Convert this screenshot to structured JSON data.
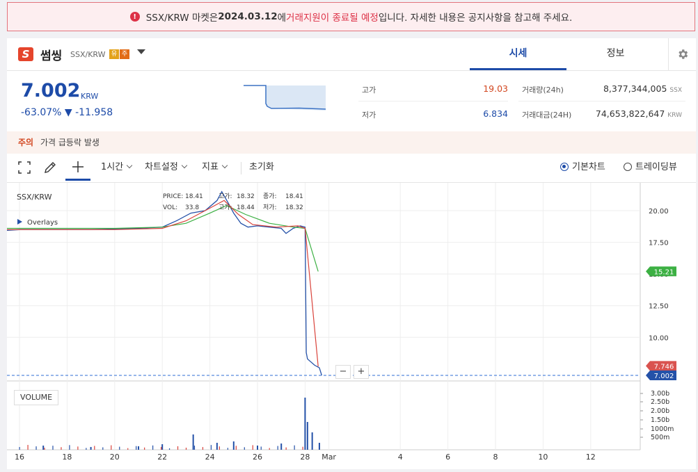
{
  "notice": {
    "pre": "SSX/KRW 마켓은 ",
    "date": "2024.03.12",
    "mid": "에 ",
    "highlight": "거래지원이 종료될 예정",
    "post": "입니다. 자세한 내용은 공지사항을 참고해 주세요."
  },
  "coin": {
    "logo": "S",
    "name": "썸씽",
    "pair": "SSX/KRW",
    "badge1": "유",
    "badge2": "주"
  },
  "tabs": {
    "quote": "시세",
    "info": "정보"
  },
  "price": {
    "value": "7.002",
    "unit": "KRW",
    "change_pct": "-63.07%",
    "change_abs": "▼ -11.958"
  },
  "stats": {
    "high_label": "고가",
    "high_value": "19.03",
    "low_label": "저가",
    "low_value": "6.834",
    "vol_label": "거래량(24h)",
    "vol_value": "8,377,344,005",
    "vol_unit": "SSX",
    "amt_label": "거래대금(24H)",
    "amt_value": "74,653,822,647",
    "amt_unit": "KRW"
  },
  "warning": {
    "label": "주의",
    "text": "가격 급등락 발생"
  },
  "toolbar": {
    "interval": "1시간",
    "chart_settings": "차트설정",
    "indicators": "지표",
    "reset": "초기화",
    "basic_chart": "기본차트",
    "tradingview": "트레이딩뷰"
  },
  "chart_labels": {
    "symbol": "SSX/KRW",
    "overlays": "Overlays",
    "volume": "VOLUME",
    "price_label": "PRICE:",
    "price_val": "18.41",
    "vol_label": "VOL:",
    "vol_val": "33.8",
    "high_label": "고가:",
    "high_val": "18.32",
    "low_label": "고가:",
    "low_val": "18.44",
    "close_label": "종가:",
    "close_val": "18.41",
    "lowp_label": "저가:",
    "lowp_val": "18.32",
    "ma_badge": "15.21",
    "ma2_badge": "7.746",
    "last_badge": "7.002",
    "zoom_minus": "−",
    "zoom_plus": "+"
  },
  "chart_data": {
    "type": "line",
    "x_ticks": [
      "16",
      "18",
      "20",
      "22",
      "24",
      "26",
      "28",
      "Mar",
      "4",
      "6",
      "8",
      "10",
      "12"
    ],
    "y_ticks": [
      "20.00",
      "17.50",
      "15.00",
      "12.50",
      "10.00"
    ],
    "volume_ticks": [
      "3.00b",
      "2.50b",
      "2.00b",
      "1.50b",
      "1000m",
      "500m"
    ],
    "ylim": [
      6.5,
      22
    ],
    "price_series": [
      [
        15.0,
        18.4
      ],
      [
        16,
        18.5
      ],
      [
        17,
        18.5
      ],
      [
        18,
        18.5
      ],
      [
        19,
        18.5
      ],
      [
        20,
        18.55
      ],
      [
        21,
        18.6
      ],
      [
        22,
        18.7
      ],
      [
        22.6,
        19.2
      ],
      [
        23.2,
        19.8
      ],
      [
        23.8,
        20.0
      ],
      [
        24.3,
        20.8
      ],
      [
        24.5,
        21.5
      ],
      [
        24.8,
        20.5
      ],
      [
        25.0,
        19.8
      ],
      [
        25.3,
        19.0
      ],
      [
        25.6,
        18.7
      ],
      [
        26,
        18.8
      ],
      [
        26.5,
        18.7
      ],
      [
        27,
        18.6
      ],
      [
        27.2,
        18.2
      ],
      [
        27.5,
        18.6
      ],
      [
        27.8,
        18.8
      ],
      [
        28.0,
        18.7
      ],
      [
        28.05,
        8.8
      ],
      [
        28.1,
        8.3
      ],
      [
        28.4,
        7.8
      ],
      [
        28.6,
        7.6
      ],
      [
        28.7,
        7.0
      ]
    ],
    "ma_slow": [
      [
        15,
        18.6
      ],
      [
        20,
        18.6
      ],
      [
        22,
        18.7
      ],
      [
        23,
        19.0
      ],
      [
        24,
        19.8
      ],
      [
        24.7,
        20.4
      ],
      [
        25.5,
        19.7
      ],
      [
        26.5,
        19.0
      ],
      [
        27.5,
        18.7
      ],
      [
        28.0,
        18.6
      ],
      [
        28.55,
        15.2
      ]
    ],
    "ma_fast": [
      [
        15,
        18.5
      ],
      [
        20,
        18.5
      ],
      [
        22,
        18.6
      ],
      [
        23,
        19.2
      ],
      [
        24,
        20.2
      ],
      [
        24.6,
        20.8
      ],
      [
        25.2,
        19.7
      ],
      [
        25.8,
        18.9
      ],
      [
        26.8,
        18.7
      ],
      [
        27.7,
        18.8
      ],
      [
        28.0,
        18.6
      ],
      [
        28.55,
        7.7
      ]
    ],
    "last_price": 7.002
  }
}
